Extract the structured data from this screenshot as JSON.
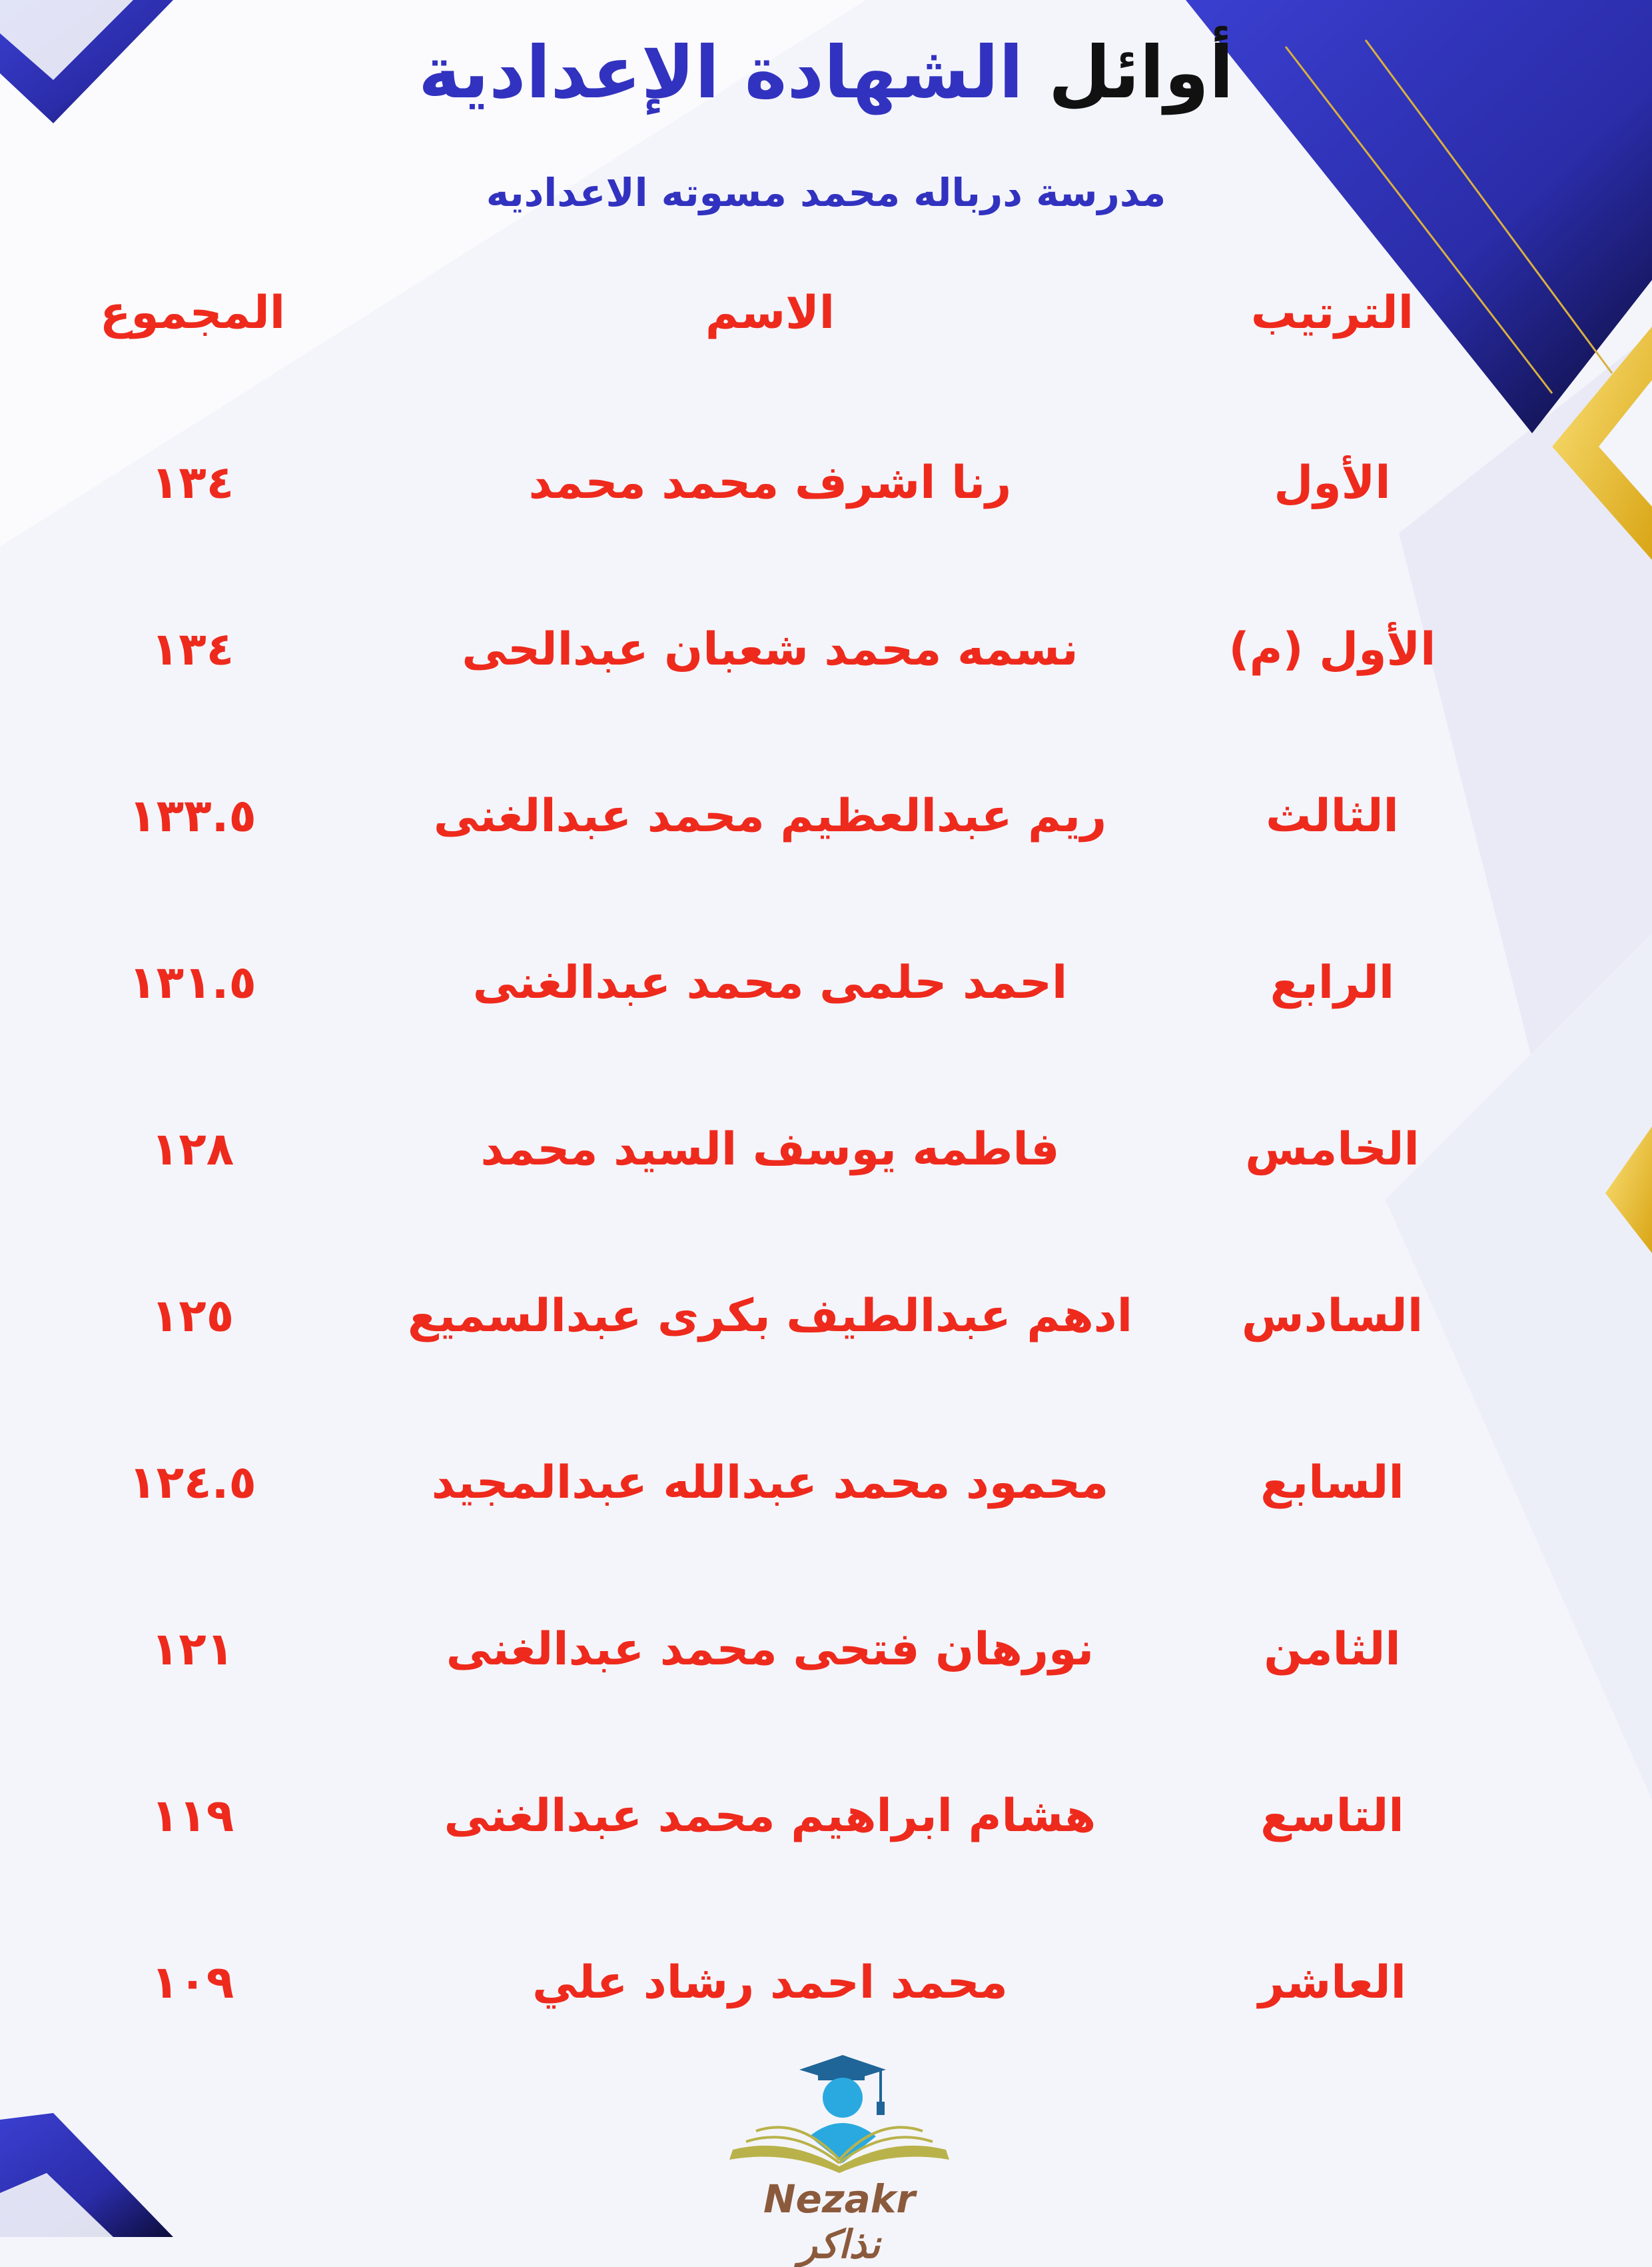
{
  "header": {
    "title_part1": "أوائل",
    "title_part2": "الشهادة الإعدادية",
    "subtitle": "مدرسة درباله محمد مسوته الاعداديه"
  },
  "table": {
    "columns": {
      "rank": "الترتيب",
      "name": "الاسم",
      "total": "المجموع"
    },
    "rows": [
      {
        "rank": "الأول",
        "name": "رنا اشرف محمد محمد",
        "total": "١٣٤"
      },
      {
        "rank": "الأول (م)",
        "name": "نسمه محمد شعبان عبدالحى",
        "total": "١٣٤"
      },
      {
        "rank": "الثالث",
        "name": "ريم عبدالعظيم محمد عبدالغنى",
        "total": "١٣٣.٥"
      },
      {
        "rank": "الرابع",
        "name": "احمد حلمى محمد عبدالغنى",
        "total": "١٣١.٥"
      },
      {
        "rank": "الخامس",
        "name": "فاطمه يوسف السيد محمد",
        "total": "١٢٨"
      },
      {
        "rank": "السادس",
        "name": "ادهم عبدالطيف بكرى عبدالسميع",
        "total": "١٢٥"
      },
      {
        "rank": "السابع",
        "name": "محمود محمد عبدالله عبدالمجيد",
        "total": "١٢٤.٥"
      },
      {
        "rank": "الثامن",
        "name": "نورهان فتحى محمد عبدالغنى",
        "total": "١٢١"
      },
      {
        "rank": "التاسع",
        "name": "هشام ابراهيم محمد عبدالغنى",
        "total": "١١٩"
      },
      {
        "rank": "العاشر",
        "name": "محمد احمد رشاد علي",
        "total": "١٠٩"
      }
    ]
  },
  "logo": {
    "text": "Nezakr نذاكر",
    "icon": "graduate-book-icon"
  },
  "colors": {
    "title_blue": "#3232c0",
    "table_red": "#ee2a1d",
    "accent_gold": "#f2c21b",
    "deco_blue": "#2b2fb8"
  }
}
